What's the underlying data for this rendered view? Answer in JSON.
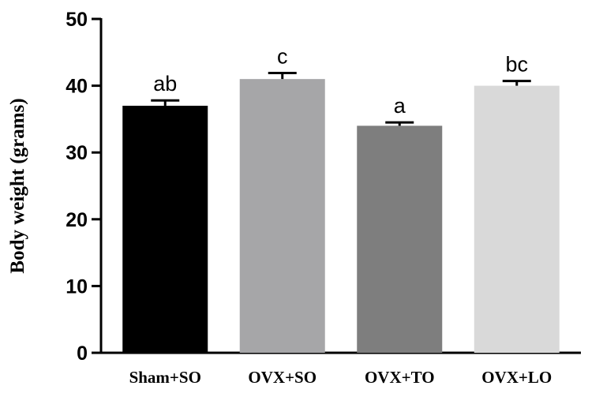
{
  "chart_data": {
    "type": "bar",
    "title": "",
    "xlabel": "",
    "ylabel": "Body weight (grams)",
    "ylim": [
      0,
      50
    ],
    "yticks": [
      0,
      10,
      20,
      30,
      40,
      50
    ],
    "grid": false,
    "categories": [
      "Sham+SO",
      "OVX+SO",
      "OVX+TO",
      "OVX+LO"
    ],
    "values": [
      37,
      41,
      34,
      40
    ],
    "errors": [
      0.8,
      0.9,
      0.5,
      0.7
    ],
    "significance": [
      "ab",
      "c",
      "a",
      "bc"
    ],
    "colors": [
      "#000000",
      "#a6a6a8",
      "#7e7e7e",
      "#d9d9d9"
    ]
  }
}
